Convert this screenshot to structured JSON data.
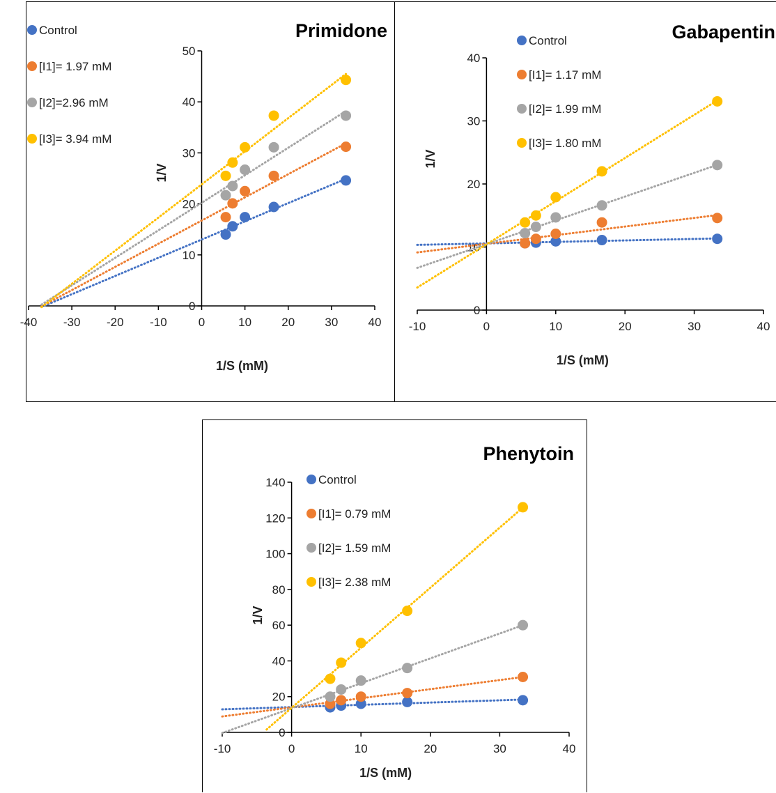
{
  "colors": {
    "Control": "#4472C4",
    "I1": "#ED7D31",
    "I2": "#A5A5A5",
    "I3": "#FFC000"
  },
  "chart_data": [
    {
      "type": "scatter",
      "title": "Primidone",
      "xlabel": "1/S (mM)",
      "ylabel": "1/V",
      "xlim": [
        -40,
        40
      ],
      "ylim": [
        0,
        50
      ],
      "xticks": [
        "-40",
        "-30",
        "-20",
        "-10",
        "0",
        "10",
        "20",
        "30",
        "40"
      ],
      "yticks": [
        "0",
        "10",
        "20",
        "30",
        "40",
        "50"
      ],
      "grid": false,
      "legend": "top-left",
      "series": [
        {
          "name": "Control",
          "color_key": "Control",
          "x": [
            5.56,
            7.14,
            10,
            16.67,
            33.33
          ],
          "y": [
            14,
            15.6,
            17.4,
            19.4,
            24.6
          ],
          "trend": {
            "x0": -37,
            "x1": 33.33
          }
        },
        {
          "name": "[I1]= 1.97 mM",
          "color_key": "I1",
          "x": [
            5.56,
            7.14,
            10,
            16.67,
            33.33
          ],
          "y": [
            17.4,
            20.1,
            22.5,
            25.5,
            31.2
          ],
          "trend": {
            "x0": -37,
            "x1": 33.33
          }
        },
        {
          "name": "[I2]=2.96 mM",
          "color_key": "I2",
          "x": [
            5.56,
            7.14,
            10,
            16.67,
            33.33
          ],
          "y": [
            21.7,
            23.5,
            26.7,
            31.1,
            37.3
          ],
          "trend": {
            "x0": -37,
            "x1": 33.33
          }
        },
        {
          "name": "[I3]= 3.94 mM",
          "color_key": "I3",
          "x": [
            5.56,
            7.14,
            10,
            16.67,
            33.33
          ],
          "y": [
            25.5,
            28.1,
            31.1,
            37.3,
            44.3
          ],
          "trend": {
            "x0": -37,
            "x1": 33.33
          }
        }
      ]
    },
    {
      "type": "scatter",
      "title": "Gabapentin",
      "xlabel": "1/S (mM)",
      "ylabel": "1/V",
      "xlim": [
        -10,
        40
      ],
      "ylim": [
        0,
        40
      ],
      "xticks": [
        "-10",
        "0",
        "10",
        "20",
        "30",
        "40"
      ],
      "yticks": [
        "0",
        "10",
        "20",
        "30",
        "40"
      ],
      "grid": false,
      "legend": "top",
      "series": [
        {
          "name": "Control",
          "color_key": "Control",
          "x": [
            5.56,
            7.14,
            10,
            16.67,
            33.33
          ],
          "y": [
            10.6,
            10.7,
            10.9,
            11.1,
            11.3
          ],
          "trend": {
            "x0": -10,
            "x1": 33.33
          }
        },
        {
          "name": "[I1]= 1.17 mM",
          "color_key": "I1",
          "x": [
            5.56,
            7.14,
            10,
            16.67,
            33.33
          ],
          "y": [
            10.6,
            11.3,
            12.1,
            13.9,
            14.6
          ],
          "trend": {
            "x0": -10,
            "x1": 33.33
          }
        },
        {
          "name": "[I2]= 1.99 mM",
          "color_key": "I2",
          "x": [
            5.56,
            7.14,
            10,
            16.67,
            33.33
          ],
          "y": [
            12.2,
            13.2,
            14.7,
            16.6,
            23
          ],
          "trend": {
            "x0": -10,
            "x1": 33.33
          }
        },
        {
          "name": "[I3]= 1.80 mM",
          "color_key": "I3",
          "x": [
            5.56,
            7.14,
            10,
            16.67,
            33.33
          ],
          "y": [
            13.9,
            15,
            17.9,
            22,
            33.1
          ],
          "trend": {
            "x0": -10,
            "x1": 33.33
          }
        }
      ]
    },
    {
      "type": "scatter",
      "title": "Phenytoin",
      "xlabel": "1/S (mM)",
      "ylabel": "1/V",
      "xlim": [
        -10,
        40
      ],
      "ylim": [
        0,
        140
      ],
      "xticks": [
        "-10",
        "0",
        "10",
        "20",
        "30",
        "40"
      ],
      "yticks": [
        "0",
        "20",
        "40",
        "60",
        "80",
        "100",
        "120",
        "140"
      ],
      "grid": false,
      "legend": "top-left",
      "series": [
        {
          "name": "Control",
          "color_key": "Control",
          "x": [
            5.56,
            7.14,
            10,
            16.67,
            33.33
          ],
          "y": [
            14,
            15,
            16,
            17,
            18
          ],
          "trend": {
            "x0": -10,
            "x1": 33.33
          }
        },
        {
          "name": "[I1]= 0.79 mM",
          "color_key": "I1",
          "x": [
            5.56,
            7.14,
            10,
            16.67,
            33.33
          ],
          "y": [
            16,
            18,
            20,
            22,
            31
          ],
          "trend": {
            "x0": -10,
            "x1": 33.33
          }
        },
        {
          "name": "[I2]= 1.59 mM",
          "color_key": "I2",
          "x": [
            5.56,
            7.14,
            10,
            16.67,
            33.33
          ],
          "y": [
            20,
            24,
            29,
            36,
            60
          ],
          "trend": {
            "x0": -10,
            "x1": 33.33
          }
        },
        {
          "name": "[I3]= 2.38 mM",
          "color_key": "I3",
          "x": [
            5.56,
            7.14,
            10,
            16.67,
            33.33
          ],
          "y": [
            30,
            39,
            50,
            68,
            126
          ],
          "trend": {
            "x0": -3.6,
            "x1": 33.33
          }
        }
      ]
    }
  ]
}
